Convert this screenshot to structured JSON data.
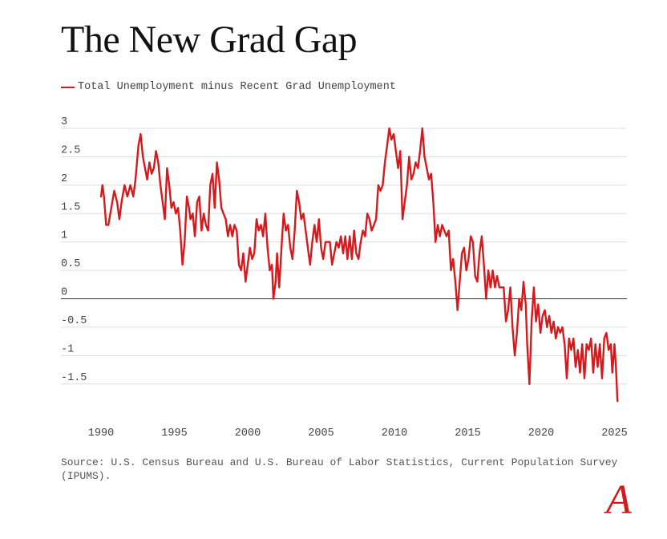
{
  "title": "The New Grad Gap",
  "source": "Source: U.S. Census Bureau and U.S. Bureau of Labor Statistics, Current Population Survey (IPUMS).",
  "logo": "A",
  "colors": {
    "series": "#d7191c",
    "logo": "#d7191c",
    "grid": "#dddddd",
    "zero_line": "#333333",
    "text": "#444444"
  },
  "chart_data": {
    "type": "line",
    "title": "The New Grad Gap",
    "xlabel": "",
    "ylabel": "",
    "xlim": [
      1990,
      2025.3
    ],
    "ylim": [
      -1.8,
      3
    ],
    "grid": "horizontal",
    "legend": "top-left",
    "x_ticks": [
      {
        "value": 1990,
        "label": "1990"
      },
      {
        "value": 1995,
        "label": "1995"
      },
      {
        "value": 2000,
        "label": "2000"
      },
      {
        "value": 2005,
        "label": "2005"
      },
      {
        "value": 2010,
        "label": "2010"
      },
      {
        "value": 2015,
        "label": "2015"
      },
      {
        "value": 2020,
        "label": "2020"
      },
      {
        "value": 2025,
        "label": "2025"
      }
    ],
    "y_ticks": [
      {
        "value": 3,
        "label": "3"
      },
      {
        "value": 2.5,
        "label": "2.5"
      },
      {
        "value": 2,
        "label": "2"
      },
      {
        "value": 1.5,
        "label": "1.5"
      },
      {
        "value": 1,
        "label": "1"
      },
      {
        "value": 0.5,
        "label": "0.5"
      },
      {
        "value": 0,
        "label": "0"
      },
      {
        "value": -0.5,
        "label": "-0.5"
      },
      {
        "value": -1,
        "label": "-1"
      },
      {
        "value": -1.5,
        "label": "-1.5"
      }
    ],
    "series": [
      {
        "name": "Total Unemployment minus Recent Grad Unemployment",
        "color": "#d7191c",
        "points": [
          [
            1990.0,
            1.8
          ],
          [
            1990.1,
            2.0
          ],
          [
            1990.2,
            1.8
          ],
          [
            1990.35,
            1.3
          ],
          [
            1990.5,
            1.3
          ],
          [
            1990.7,
            1.6
          ],
          [
            1990.9,
            1.9
          ],
          [
            1991.1,
            1.7
          ],
          [
            1991.25,
            1.4
          ],
          [
            1991.4,
            1.7
          ],
          [
            1991.6,
            2.0
          ],
          [
            1991.8,
            1.8
          ],
          [
            1992.0,
            2.0
          ],
          [
            1992.2,
            1.8
          ],
          [
            1992.35,
            2.1
          ],
          [
            1992.55,
            2.7
          ],
          [
            1992.7,
            2.9
          ],
          [
            1992.85,
            2.5
          ],
          [
            1993.0,
            2.3
          ],
          [
            1993.15,
            2.1
          ],
          [
            1993.3,
            2.4
          ],
          [
            1993.45,
            2.2
          ],
          [
            1993.6,
            2.3
          ],
          [
            1993.75,
            2.6
          ],
          [
            1993.9,
            2.4
          ],
          [
            1994.05,
            2.0
          ],
          [
            1994.2,
            1.7
          ],
          [
            1994.35,
            1.4
          ],
          [
            1994.5,
            2.3
          ],
          [
            1994.65,
            2.0
          ],
          [
            1994.8,
            1.6
          ],
          [
            1994.95,
            1.7
          ],
          [
            1995.1,
            1.5
          ],
          [
            1995.25,
            1.6
          ],
          [
            1995.4,
            1.2
          ],
          [
            1995.55,
            0.6
          ],
          [
            1995.7,
            1.0
          ],
          [
            1995.85,
            1.8
          ],
          [
            1996.0,
            1.6
          ],
          [
            1996.1,
            1.4
          ],
          [
            1996.25,
            1.5
          ],
          [
            1996.4,
            1.1
          ],
          [
            1996.55,
            1.7
          ],
          [
            1996.7,
            1.8
          ],
          [
            1996.85,
            1.2
          ],
          [
            1997.0,
            1.5
          ],
          [
            1997.15,
            1.3
          ],
          [
            1997.3,
            1.2
          ],
          [
            1997.45,
            2.0
          ],
          [
            1997.6,
            2.2
          ],
          [
            1997.75,
            1.6
          ],
          [
            1997.9,
            2.4
          ],
          [
            1998.05,
            2.1
          ],
          [
            1998.2,
            1.6
          ],
          [
            1998.35,
            1.5
          ],
          [
            1998.5,
            1.4
          ],
          [
            1998.65,
            1.1
          ],
          [
            1998.8,
            1.3
          ],
          [
            1998.95,
            1.1
          ],
          [
            1999.1,
            1.3
          ],
          [
            1999.25,
            1.2
          ],
          [
            1999.4,
            0.6
          ],
          [
            1999.55,
            0.5
          ],
          [
            1999.7,
            0.8
          ],
          [
            1999.85,
            0.3
          ],
          [
            2000.0,
            0.6
          ],
          [
            2000.15,
            0.9
          ],
          [
            2000.3,
            0.7
          ],
          [
            2000.45,
            0.8
          ],
          [
            2000.6,
            1.4
          ],
          [
            2000.75,
            1.2
          ],
          [
            2000.9,
            1.3
          ],
          [
            2001.05,
            1.1
          ],
          [
            2001.2,
            1.5
          ],
          [
            2001.35,
            0.9
          ],
          [
            2001.5,
            0.5
          ],
          [
            2001.65,
            0.6
          ],
          [
            2001.75,
            0.0
          ],
          [
            2001.9,
            0.3
          ],
          [
            2002.0,
            0.8
          ],
          [
            2002.15,
            0.2
          ],
          [
            2002.3,
            0.9
          ],
          [
            2002.45,
            1.5
          ],
          [
            2002.6,
            1.2
          ],
          [
            2002.75,
            1.3
          ],
          [
            2002.9,
            0.9
          ],
          [
            2003.05,
            0.7
          ],
          [
            2003.2,
            1.2
          ],
          [
            2003.35,
            1.9
          ],
          [
            2003.5,
            1.7
          ],
          [
            2003.65,
            1.4
          ],
          [
            2003.8,
            1.5
          ],
          [
            2003.95,
            1.2
          ],
          [
            2004.1,
            0.9
          ],
          [
            2004.25,
            0.6
          ],
          [
            2004.4,
            1.0
          ],
          [
            2004.55,
            1.3
          ],
          [
            2004.7,
            1.0
          ],
          [
            2004.85,
            1.4
          ],
          [
            2005.0,
            0.9
          ],
          [
            2005.15,
            0.7
          ],
          [
            2005.3,
            1.0
          ],
          [
            2005.45,
            1.0
          ],
          [
            2005.6,
            1.0
          ],
          [
            2005.75,
            0.6
          ],
          [
            2005.9,
            0.8
          ],
          [
            2006.05,
            1.0
          ],
          [
            2006.2,
            0.9
          ],
          [
            2006.35,
            1.1
          ],
          [
            2006.5,
            0.8
          ],
          [
            2006.65,
            1.1
          ],
          [
            2006.8,
            0.7
          ],
          [
            2006.95,
            1.1
          ],
          [
            2007.1,
            0.7
          ],
          [
            2007.25,
            1.2
          ],
          [
            2007.4,
            0.8
          ],
          [
            2007.55,
            0.7
          ],
          [
            2007.7,
            1.0
          ],
          [
            2007.85,
            1.2
          ],
          [
            2008.0,
            1.1
          ],
          [
            2008.15,
            1.5
          ],
          [
            2008.3,
            1.4
          ],
          [
            2008.45,
            1.2
          ],
          [
            2008.6,
            1.3
          ],
          [
            2008.75,
            1.4
          ],
          [
            2008.9,
            2.0
          ],
          [
            2009.05,
            1.9
          ],
          [
            2009.2,
            2.0
          ],
          [
            2009.35,
            2.4
          ],
          [
            2009.5,
            2.7
          ],
          [
            2009.65,
            3.0
          ],
          [
            2009.8,
            2.8
          ],
          [
            2009.95,
            2.9
          ],
          [
            2010.1,
            2.6
          ],
          [
            2010.25,
            2.3
          ],
          [
            2010.4,
            2.6
          ],
          [
            2010.55,
            1.4
          ],
          [
            2010.7,
            1.7
          ],
          [
            2010.85,
            2.0
          ],
          [
            2011.0,
            2.5
          ],
          [
            2011.15,
            2.1
          ],
          [
            2011.3,
            2.2
          ],
          [
            2011.45,
            2.4
          ],
          [
            2011.6,
            2.3
          ],
          [
            2011.75,
            2.6
          ],
          [
            2011.9,
            3.0
          ],
          [
            2012.05,
            2.5
          ],
          [
            2012.2,
            2.3
          ],
          [
            2012.35,
            2.1
          ],
          [
            2012.5,
            2.2
          ],
          [
            2012.65,
            1.7
          ],
          [
            2012.8,
            1.0
          ],
          [
            2012.95,
            1.3
          ],
          [
            2013.1,
            1.1
          ],
          [
            2013.25,
            1.3
          ],
          [
            2013.4,
            1.2
          ],
          [
            2013.55,
            1.1
          ],
          [
            2013.7,
            1.2
          ],
          [
            2013.85,
            0.5
          ],
          [
            2014.0,
            0.7
          ],
          [
            2014.15,
            0.3
          ],
          [
            2014.3,
            -0.2
          ],
          [
            2014.45,
            0.3
          ],
          [
            2014.6,
            0.8
          ],
          [
            2014.75,
            0.9
          ],
          [
            2014.9,
            0.5
          ],
          [
            2015.05,
            0.7
          ],
          [
            2015.2,
            1.1
          ],
          [
            2015.35,
            1.0
          ],
          [
            2015.5,
            0.4
          ],
          [
            2015.65,
            0.3
          ],
          [
            2015.8,
            0.8
          ],
          [
            2015.95,
            1.1
          ],
          [
            2016.1,
            0.6
          ],
          [
            2016.25,
            0.0
          ],
          [
            2016.4,
            0.5
          ],
          [
            2016.55,
            0.2
          ],
          [
            2016.7,
            0.5
          ],
          [
            2016.85,
            0.2
          ],
          [
            2017.0,
            0.4
          ],
          [
            2017.15,
            0.2
          ],
          [
            2017.3,
            0.2
          ],
          [
            2017.45,
            0.2
          ],
          [
            2017.6,
            -0.4
          ],
          [
            2017.75,
            -0.2
          ],
          [
            2017.9,
            0.2
          ],
          [
            2018.05,
            -0.5
          ],
          [
            2018.2,
            -1.0
          ],
          [
            2018.35,
            -0.6
          ],
          [
            2018.5,
            0.0
          ],
          [
            2018.65,
            -0.2
          ],
          [
            2018.8,
            0.3
          ],
          [
            2018.95,
            -0.1
          ],
          [
            2019.05,
            -0.8
          ],
          [
            2019.2,
            -1.5
          ],
          [
            2019.35,
            -0.4
          ],
          [
            2019.5,
            0.2
          ],
          [
            2019.65,
            -0.4
          ],
          [
            2019.8,
            -0.1
          ],
          [
            2019.95,
            -0.6
          ],
          [
            2020.1,
            -0.3
          ],
          [
            2020.25,
            -0.2
          ],
          [
            2020.4,
            -0.5
          ],
          [
            2020.55,
            -0.3
          ],
          [
            2020.7,
            -0.6
          ],
          [
            2020.85,
            -0.4
          ],
          [
            2021.0,
            -0.7
          ],
          [
            2021.15,
            -0.5
          ],
          [
            2021.3,
            -0.6
          ],
          [
            2021.45,
            -0.5
          ],
          [
            2021.6,
            -0.8
          ],
          [
            2021.75,
            -1.4
          ],
          [
            2021.9,
            -0.7
          ],
          [
            2022.05,
            -0.9
          ],
          [
            2022.2,
            -0.7
          ],
          [
            2022.35,
            -1.2
          ],
          [
            2022.5,
            -0.9
          ],
          [
            2022.65,
            -1.3
          ],
          [
            2022.8,
            -0.8
          ],
          [
            2022.95,
            -1.4
          ],
          [
            2023.1,
            -0.8
          ],
          [
            2023.25,
            -0.9
          ],
          [
            2023.4,
            -0.7
          ],
          [
            2023.55,
            -1.3
          ],
          [
            2023.7,
            -0.8
          ],
          [
            2023.85,
            -1.2
          ],
          [
            2024.0,
            -0.8
          ],
          [
            2024.15,
            -1.4
          ],
          [
            2024.3,
            -0.7
          ],
          [
            2024.45,
            -0.6
          ],
          [
            2024.6,
            -0.9
          ],
          [
            2024.75,
            -0.8
          ],
          [
            2024.85,
            -1.3
          ],
          [
            2025.0,
            -0.8
          ],
          [
            2025.1,
            -1.2
          ],
          [
            2025.2,
            -1.8
          ]
        ]
      }
    ]
  }
}
